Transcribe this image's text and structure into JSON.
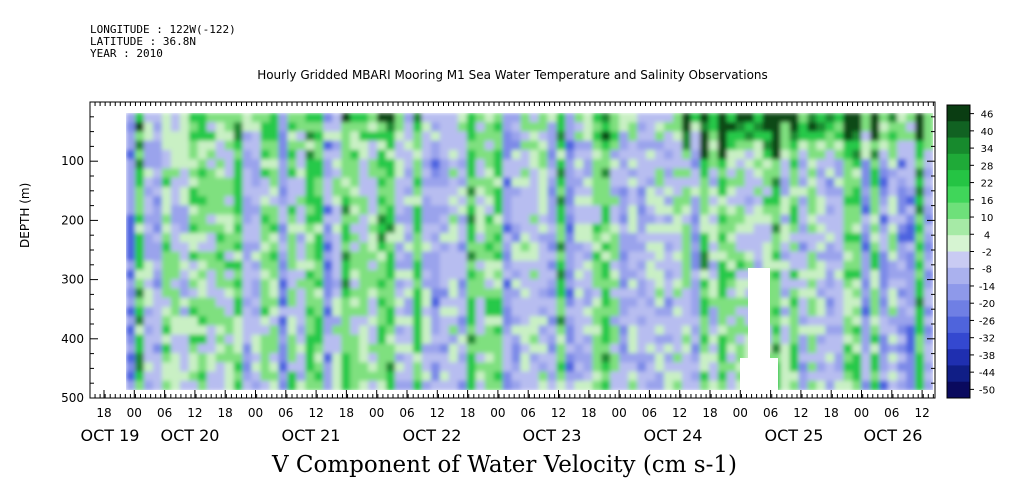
{
  "header": {
    "longitude": "LONGITUDE : 122W(-122)",
    "latitude": "LATITUDE : 36.8N",
    "year": "YEAR : 2010"
  },
  "chart_data": {
    "type": "heatmap",
    "title": "Hourly Gridded MBARI Mooring M1 Sea Water Temperature and Salinity Observations",
    "xlabel": "V Component of Water Velocity (cm s-1)",
    "ylabel": "DEPTH (m)",
    "y_reversed": true,
    "ylim": [
      500,
      0
    ],
    "y_ticks": [
      100,
      200,
      300,
      400,
      500
    ],
    "x_hour_ticks": [
      "18",
      "00",
      "06",
      "12",
      "18",
      "00",
      "06",
      "12",
      "18",
      "00",
      "06",
      "12",
      "18",
      "00",
      "06",
      "12",
      "18",
      "00",
      "06",
      "12",
      "18",
      "00",
      "06",
      "12",
      "18",
      "00",
      "06",
      "12"
    ],
    "x_day_labels": [
      "OCT 19",
      "OCT 20",
      "OCT 21",
      "OCT 22",
      "OCT 23",
      "OCT 24",
      "OCT 25",
      "OCT 26"
    ],
    "colorbar": {
      "labels": [
        "46",
        "40",
        "34",
        "28",
        "22",
        "16",
        "10",
        "4",
        "-2",
        "-8",
        "-14",
        "-20",
        "-26",
        "-32",
        "-38",
        "-44",
        "-50"
      ],
      "colors": {
        "dark_green": "#0a3d12",
        "green": "#19c83a",
        "light_green": "#9be89c",
        "light_blue": "#aab0ec",
        "blue": "#3a5ce0",
        "dark_blue": "#0a0a70"
      }
    }
  }
}
